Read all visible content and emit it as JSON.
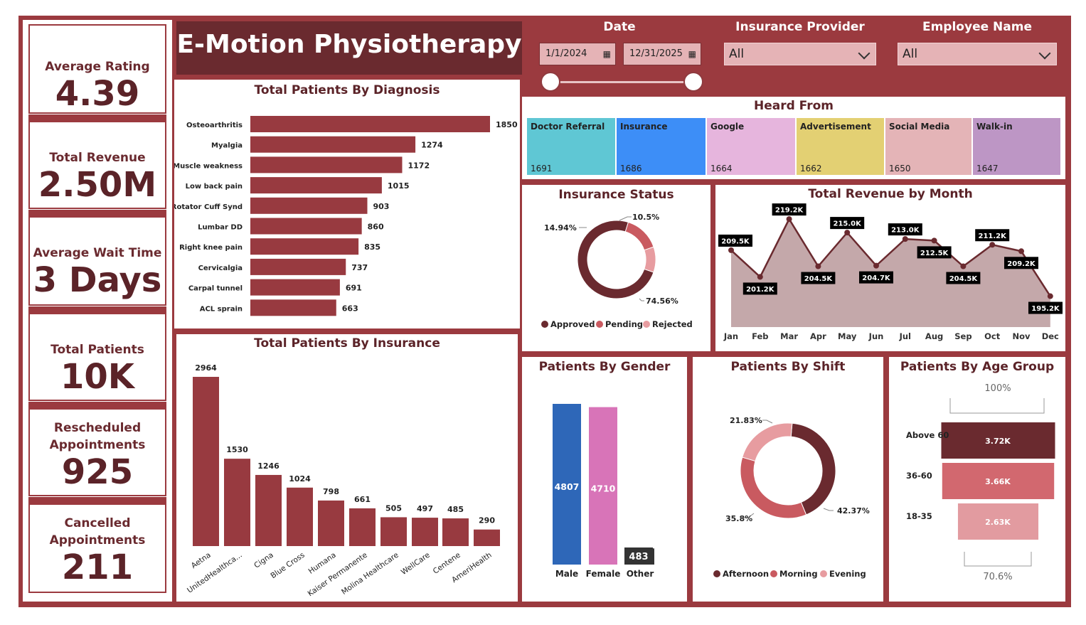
{
  "kpis": [
    {
      "label": "Average Rating",
      "value": "4.39"
    },
    {
      "label": "Total Revenue",
      "value": "2.50M"
    },
    {
      "label": "Average Wait Time",
      "value": "3 Days"
    },
    {
      "label": "Total Patients",
      "value": "10K"
    },
    {
      "label": "Rescheduled Appointments",
      "value": "925"
    },
    {
      "label": "Cancelled Appointments",
      "value": "211"
    }
  ],
  "brand": "E-Motion Physiotherapy",
  "filters": {
    "date_label": "Date",
    "date_start": "1/1/2024",
    "date_end": "12/31/2025",
    "insurance_label": "Insurance Provider",
    "insurance_value": "All",
    "employee_label": "Employee Name",
    "employee_value": "All"
  },
  "icons": {
    "calendar": "calendar-icon",
    "chevron": "chevron-down-icon"
  },
  "colors": {
    "primary": "#9b3a3f",
    "dark": "#6a2a2f",
    "bar": "#983a40",
    "male": "#2e67b8",
    "female": "#d874b8",
    "approved": "#6a2a2f",
    "pending": "#c95a60",
    "rejected": "#e79ca0"
  },
  "heard_from": {
    "title": "Heard From",
    "items": [
      {
        "name": "Doctor Referral",
        "count": "1691",
        "color": "#5fc7d4"
      },
      {
        "name": "Insurance",
        "count": "1686",
        "color": "#3d8ef7"
      },
      {
        "name": "Google",
        "count": "1664",
        "color": "#e6b5dd"
      },
      {
        "name": "Advertisement",
        "count": "1662",
        "color": "#e3d073"
      },
      {
        "name": "Social Media",
        "count": "1650",
        "color": "#e4b4b7"
      },
      {
        "name": "Walk-in",
        "count": "1647",
        "color": "#bd96c5"
      }
    ]
  },
  "chart_data": [
    {
      "id": "diagnosis",
      "type": "bar",
      "orientation": "horizontal",
      "title": "Total Patients By Diagnosis",
      "categories": [
        "Osteoarthritis",
        "Myalgia",
        "Muscle weakness",
        "Low back pain",
        "Rotator Cuff Synd",
        "Lumbar DD",
        "Right knee pain",
        "Cervicalgia",
        "Carpal tunnel",
        "ACL sprain"
      ],
      "values": [
        1850,
        1274,
        1172,
        1015,
        903,
        860,
        835,
        737,
        691,
        663
      ]
    },
    {
      "id": "insurance",
      "type": "bar",
      "title": "Total Patients By Insurance",
      "categories": [
        "Aetna",
        "UnitedHealthca...",
        "Cigna",
        "Blue Cross",
        "Humana",
        "Kaiser Permanente",
        "Molina Healthcare",
        "WellCare",
        "Centene",
        "AmeriHealth"
      ],
      "values": [
        2964,
        1530,
        1246,
        1024,
        798,
        661,
        505,
        497,
        485,
        290
      ]
    },
    {
      "id": "insurance_status",
      "type": "pie",
      "title": "Insurance Status",
      "labels": [
        "Approved",
        "Pending",
        "Rejected"
      ],
      "values": [
        74.56,
        14.94,
        10.5
      ],
      "value_labels": [
        "74.56%",
        "14.94%",
        "10.5%"
      ]
    },
    {
      "id": "revenue_month",
      "type": "area",
      "title": "Total Revenue by Month",
      "categories": [
        "Jan",
        "Feb",
        "Mar",
        "Apr",
        "May",
        "Jun",
        "Jul",
        "Aug",
        "Sep",
        "Oct",
        "Nov",
        "Dec"
      ],
      "values": [
        209.5,
        201.2,
        219.2,
        204.5,
        215.0,
        204.7,
        213.0,
        212.5,
        204.5,
        211.2,
        209.2,
        195.2
      ],
      "value_labels": [
        "209.5K",
        "201.2K",
        "219.2K",
        "204.5K",
        "215.0K",
        "204.7K",
        "213.0K",
        "212.5K",
        "204.5K",
        "211.2K",
        "209.2K",
        "195.2K"
      ]
    },
    {
      "id": "gender",
      "type": "bar",
      "title": "Patients By Gender",
      "categories": [
        "Male",
        "Female",
        "Other"
      ],
      "values": [
        4807,
        4710,
        483
      ]
    },
    {
      "id": "shift",
      "type": "pie",
      "title": "Patients By Shift",
      "labels": [
        "Afternoon",
        "Morning",
        "Evening"
      ],
      "values": [
        42.37,
        35.8,
        21.83
      ],
      "value_labels": [
        "42.37%",
        "35.8%",
        "21.83%"
      ]
    },
    {
      "id": "age_group",
      "type": "bar",
      "title": "Patients By Age Group",
      "categories": [
        "Above 60",
        "36-60",
        "18-35"
      ],
      "values": [
        3.72,
        3.66,
        2.63
      ],
      "value_labels": [
        "3.72K",
        "3.66K",
        "2.63K"
      ],
      "top_label": "100%",
      "bottom_label": "70.6%"
    }
  ]
}
